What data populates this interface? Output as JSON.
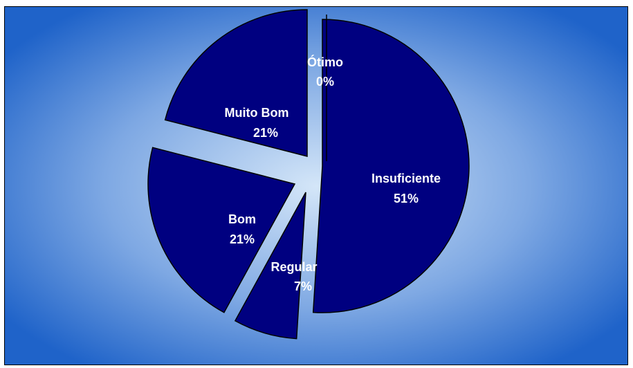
{
  "chart_data": {
    "type": "pie",
    "exploded": true,
    "title": "",
    "legend": "none",
    "slices": [
      {
        "label": "Insuficiente",
        "value": 51,
        "value_label": "51%"
      },
      {
        "label": "Regular",
        "value": 7,
        "value_label": "7%"
      },
      {
        "label": "Bom",
        "value": 21,
        "value_label": "21%"
      },
      {
        "label": "Muito Bom",
        "value": 21,
        "value_label": "21%"
      },
      {
        "label": "Ótimo",
        "value": 0,
        "value_label": "0%"
      }
    ]
  },
  "colors": {
    "slice_fill": "#000080",
    "slice_outline": "#000000",
    "label_text": "#ffffff",
    "background_center": "#d4e6f8",
    "background_edge": "#1f63c9"
  }
}
